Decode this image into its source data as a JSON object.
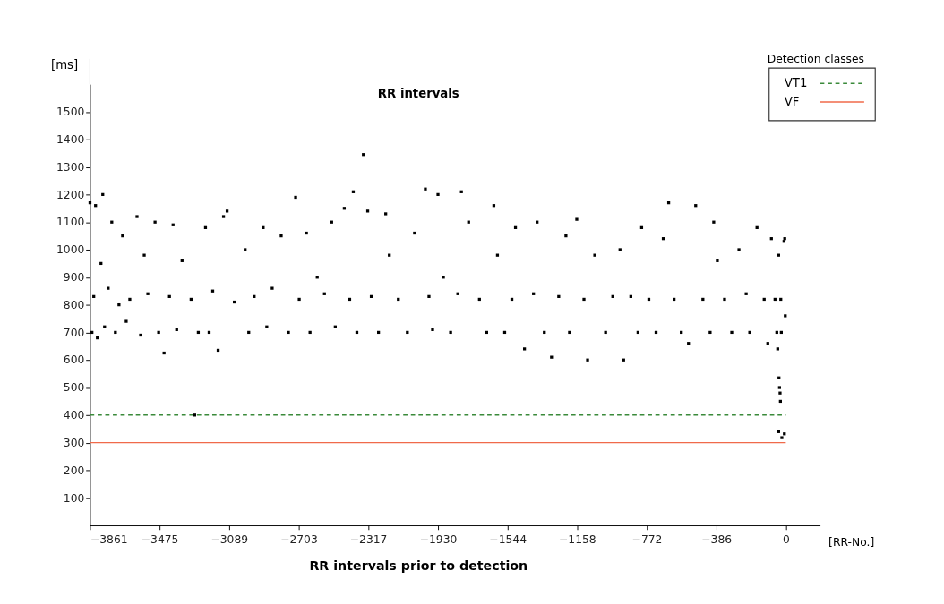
{
  "chart_data": {
    "type": "scatter",
    "title": "RR intervals",
    "xlabel": "RR intervals prior to detection",
    "ylabel": "[ms]",
    "annotations": [
      "[RR-No.]"
    ],
    "legend_title": "Detection classes",
    "legend": "top right",
    "marker": "square",
    "xlim": [
      -3861,
      190
    ],
    "ylim": [
      0,
      1600
    ],
    "xticks": [
      -3861,
      -3475,
      -3089,
      -2703,
      -2317,
      -1930,
      -1544,
      -1158,
      -772,
      -386,
      0
    ],
    "yticks": [
      100,
      200,
      300,
      400,
      500,
      600,
      700,
      800,
      900,
      1000,
      1100,
      1200,
      1300,
      1400,
      1500
    ],
    "series": [
      {
        "color": "#000000",
        "x": [
          -3861,
          -3850,
          -3840,
          -3830,
          -3820,
          -3800,
          -3790,
          -3780,
          -3760,
          -3740,
          -3720,
          -3700,
          -3680,
          -3660,
          -3640,
          -3600,
          -3580,
          -3560,
          -3540,
          -3500,
          -3480,
          -3450,
          -3420,
          -3400,
          -3380,
          -3350,
          -3300,
          -3280,
          -3260,
          -3220,
          -3200,
          -3180,
          -3150,
          -3120,
          -3100,
          -3060,
          -3000,
          -2980,
          -2950,
          -2900,
          -2880,
          -2850,
          -2800,
          -2760,
          -2720,
          -2700,
          -2660,
          -2640,
          -2600,
          -2560,
          -2520,
          -2500,
          -2450,
          -2420,
          -2400,
          -2380,
          -2344,
          -2320,
          -2300,
          -2260,
          -2220,
          -2200,
          -2150,
          -2100,
          -2060,
          -2000,
          -1980,
          -1960,
          -1930,
          -1900,
          -1860,
          -1820,
          -1800,
          -1760,
          -1700,
          -1660,
          -1620,
          -1600,
          -1560,
          -1520,
          -1500,
          -1450,
          -1400,
          -1380,
          -1340,
          -1300,
          -1260,
          -1220,
          -1200,
          -1160,
          -1120,
          -1100,
          -1060,
          -1000,
          -960,
          -920,
          -900,
          -860,
          -820,
          -800,
          -760,
          -720,
          -680,
          -650,
          -620,
          -580,
          -540,
          -500,
          -460,
          -420,
          -400,
          -380,
          -340,
          -300,
          -260,
          -220,
          -200,
          -160,
          -120,
          -100,
          -80,
          -60,
          -50,
          -45,
          -40,
          -38,
          -35,
          -32,
          -30,
          -28,
          -25,
          -40,
          -22,
          -8,
          -10,
          -6,
          -3
        ],
        "values": [
          1170,
          700,
          830,
          1160,
          680,
          950,
          1200,
          720,
          860,
          1100,
          700,
          800,
          1050,
          740,
          820,
          1120,
          690,
          980,
          840,
          1100,
          700,
          625,
          830,
          1090,
          710,
          960,
          820,
          400,
          700,
          1080,
          700,
          850,
          635,
          1120,
          1140,
          810,
          1000,
          700,
          830,
          1080,
          720,
          860,
          1050,
          700,
          1190,
          820,
          1060,
          700,
          900,
          840,
          1100,
          720,
          1150,
          820,
          1210,
          700,
          1345,
          1140,
          830,
          700,
          1130,
          980,
          820,
          700,
          1060,
          1220,
          830,
          710,
          1200,
          900,
          700,
          840,
          1210,
          1100,
          820,
          700,
          1160,
          980,
          700,
          820,
          1080,
          640,
          840,
          1100,
          700,
          610,
          830,
          1050,
          700,
          1110,
          820,
          600,
          980,
          700,
          830,
          1000,
          600,
          830,
          700,
          1080,
          820,
          700,
          1040,
          1170,
          820,
          700,
          660,
          1160,
          820,
          700,
          1100,
          960,
          820,
          700,
          1000,
          840,
          700,
          1080,
          820,
          660,
          1040,
          820,
          700,
          640,
          980,
          535,
          500,
          480,
          450,
          820,
          700,
          340,
          318,
          332,
          1030,
          1040,
          760
        ]
      }
    ],
    "ref_lines": [
      {
        "axis": "y",
        "value": 400,
        "label": "VT1",
        "color": "#3a8a3a",
        "line_style": "dashed"
      },
      {
        "axis": "y",
        "value": 300,
        "label": "VF",
        "color": "#f06a4a",
        "line_style": "solid"
      }
    ]
  }
}
